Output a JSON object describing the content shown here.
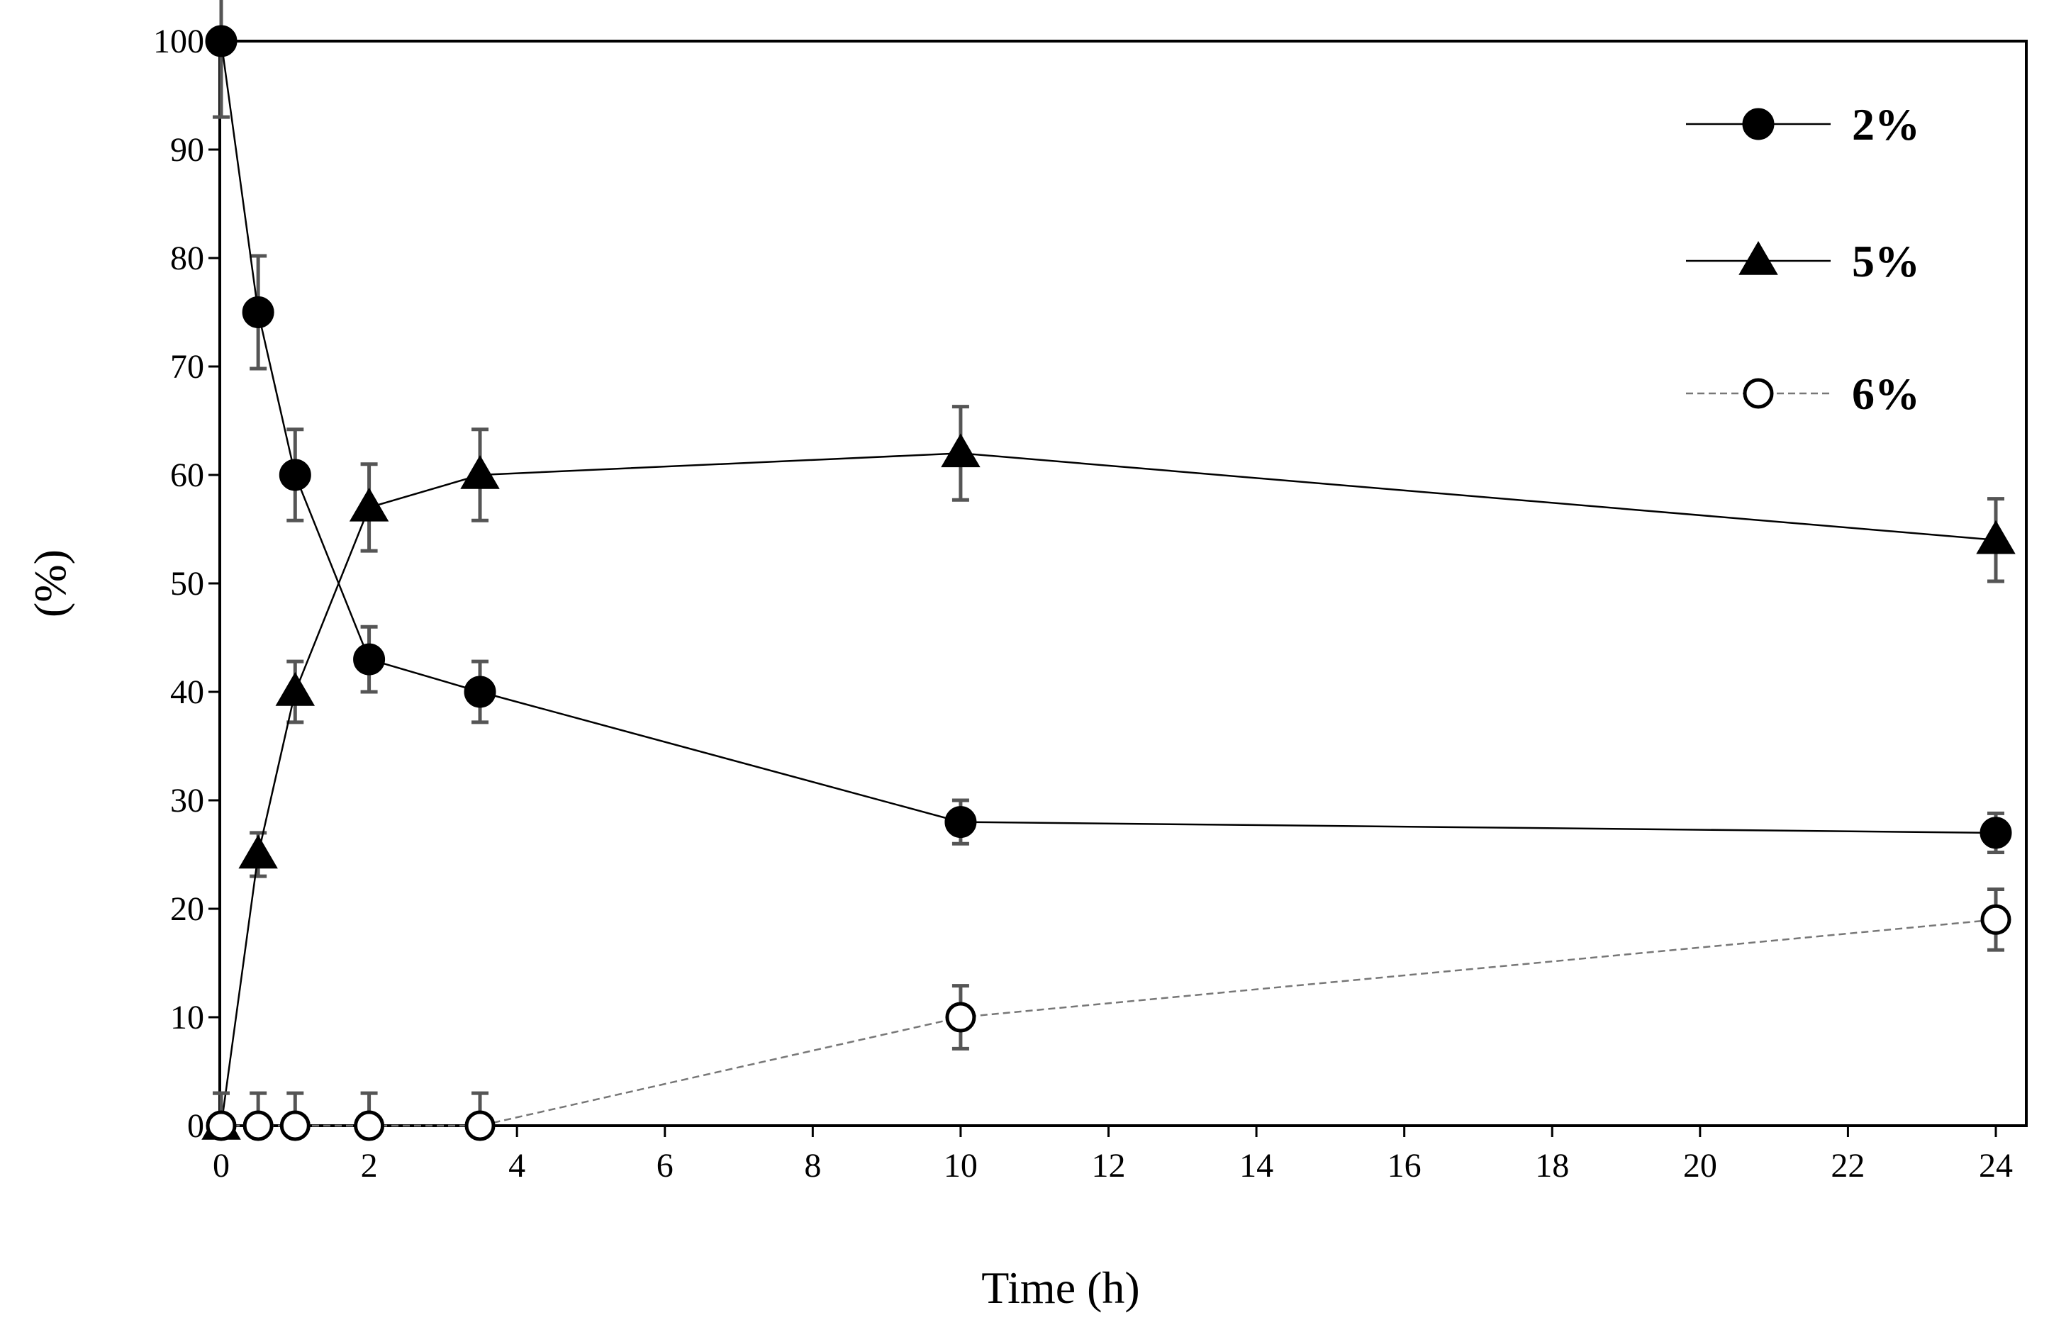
{
  "chart_data": {
    "type": "line",
    "title": "",
    "xlabel": "Time (h)",
    "ylabel": "(%)",
    "xlim": [
      0,
      24
    ],
    "ylim": [
      0,
      100
    ],
    "xticks": [
      0,
      2,
      4,
      6,
      8,
      10,
      12,
      14,
      16,
      18,
      20,
      22,
      24
    ],
    "yticks": [
      0,
      10,
      20,
      30,
      40,
      50,
      60,
      70,
      80,
      90,
      100
    ],
    "grid": false,
    "legend_position": "top-right",
    "series": [
      {
        "name": "2%",
        "marker": "circle-filled",
        "line_style": "solid",
        "color": "#000000",
        "x": [
          0,
          0.5,
          1,
          2,
          3.5,
          10,
          24
        ],
        "y": [
          100,
          75,
          60,
          43,
          40,
          28,
          27
        ],
        "error": [
          7,
          5.2,
          4.2,
          3,
          2.8,
          2,
          1.8
        ]
      },
      {
        "name": "5%",
        "marker": "triangle-filled",
        "line_style": "solid",
        "color": "#000000",
        "x": [
          0,
          0.5,
          1,
          2,
          3.5,
          10,
          24
        ],
        "y": [
          0,
          25,
          40,
          57,
          60,
          62,
          54
        ],
        "error": [
          3,
          2,
          2.8,
          4,
          4.2,
          4.3,
          3.8
        ]
      },
      {
        "name": "6%",
        "marker": "circle-open",
        "line_style": "dashed",
        "color": "#777777",
        "x": [
          0,
          0.5,
          1,
          2,
          3.5,
          10,
          24
        ],
        "y": [
          0,
          0,
          0,
          0,
          0,
          10,
          19
        ],
        "error": [
          3,
          3,
          3,
          3,
          3,
          2.9,
          2.8
        ]
      }
    ]
  }
}
